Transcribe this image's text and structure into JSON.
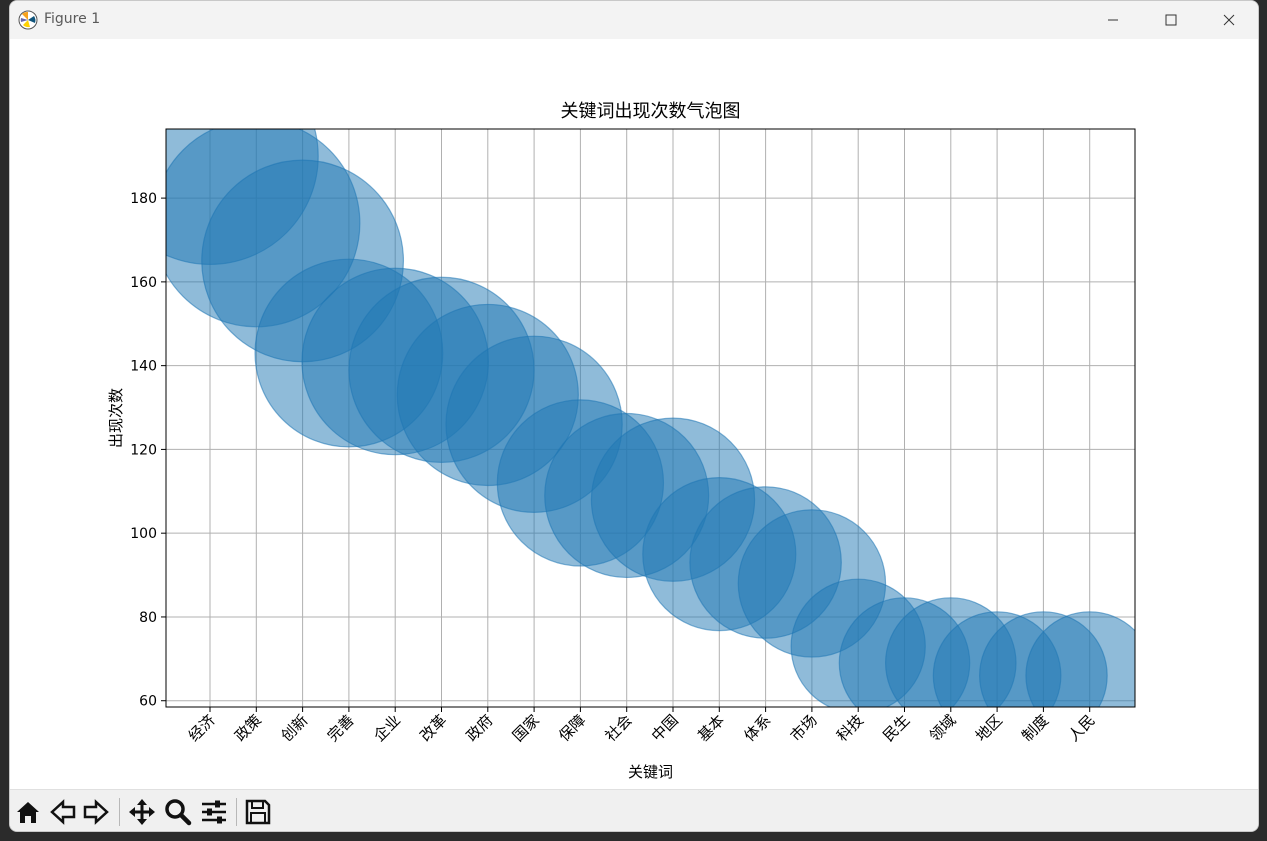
{
  "window": {
    "title": "Figure 1",
    "icons": {
      "app": "matplotlib-icon",
      "minimize": "minimize-icon",
      "maximize": "maximize-icon",
      "close": "close-icon"
    }
  },
  "toolbar": {
    "buttons": [
      {
        "name": "home-button",
        "icon": "home-icon"
      },
      {
        "name": "back-button",
        "icon": "back-arrow-icon"
      },
      {
        "name": "forward-button",
        "icon": "forward-arrow-icon"
      },
      {
        "name": "pan-button",
        "icon": "move-icon"
      },
      {
        "name": "zoom-button",
        "icon": "magnifier-icon"
      },
      {
        "name": "configure-subplots-button",
        "icon": "sliders-icon"
      },
      {
        "name": "save-button",
        "icon": "floppy-disk-icon"
      }
    ]
  },
  "chart_data": {
    "type": "scatter",
    "title": "关键词出现次数气泡图",
    "xlabel": "关键词",
    "ylabel": "出现次数",
    "categories": [
      "经济",
      "政策",
      "创新",
      "完善",
      "企业",
      "改革",
      "政府",
      "国家",
      "保障",
      "社会",
      "中国",
      "基本",
      "体系",
      "市场",
      "科技",
      "民生",
      "领域",
      "地区",
      "制度",
      "人民"
    ],
    "values": [
      190,
      174,
      165,
      143,
      141,
      139,
      133,
      126,
      112,
      109,
      108,
      95,
      93,
      88,
      73,
      69,
      69,
      66,
      66,
      66
    ],
    "ylim": [
      58.5,
      196.5
    ],
    "yticks": [
      60,
      80,
      100,
      120,
      140,
      160,
      180
    ],
    "grid": true,
    "bubble_color": "#1f77b4",
    "bubble_alpha": 0.5,
    "bubble_size": "proportional to value"
  }
}
